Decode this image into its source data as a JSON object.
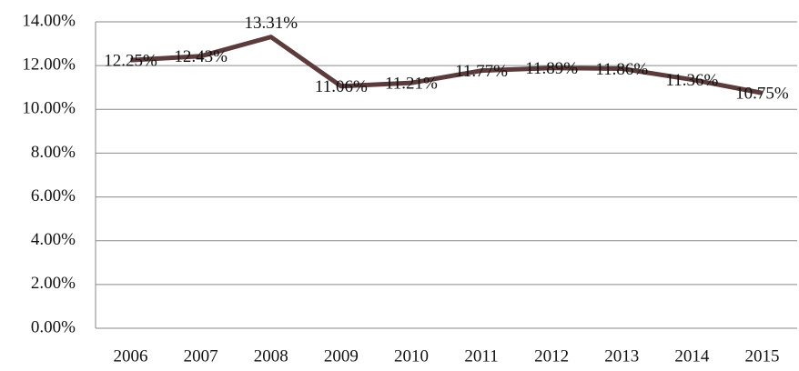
{
  "chart_data": {
    "type": "line",
    "categories": [
      "2006",
      "2007",
      "2008",
      "2009",
      "2010",
      "2011",
      "2012",
      "2013",
      "2014",
      "2015"
    ],
    "values": [
      12.25,
      12.43,
      13.31,
      11.06,
      11.21,
      11.77,
      11.89,
      11.86,
      11.36,
      10.75
    ],
    "value_labels": [
      "12.25%",
      "12.43%",
      "13.31%",
      "11.06%",
      "11.21%",
      "11.77%",
      "11.89%",
      "11.86%",
      "11.36%",
      "10.75%"
    ],
    "color": "#5b3b3b",
    "ylim": [
      0,
      14
    ],
    "yticks": [
      {
        "value": 0,
        "label": "0.00%"
      },
      {
        "value": 2,
        "label": "2.00%"
      },
      {
        "value": 4,
        "label": "4.00%"
      },
      {
        "value": 6,
        "label": "6.00%"
      },
      {
        "value": 8,
        "label": "8.00%"
      },
      {
        "value": 10,
        "label": "10.00%"
      },
      {
        "value": 12,
        "label": "12.00%"
      },
      {
        "value": 14,
        "label": "14.00%"
      }
    ],
    "grid": true
  }
}
